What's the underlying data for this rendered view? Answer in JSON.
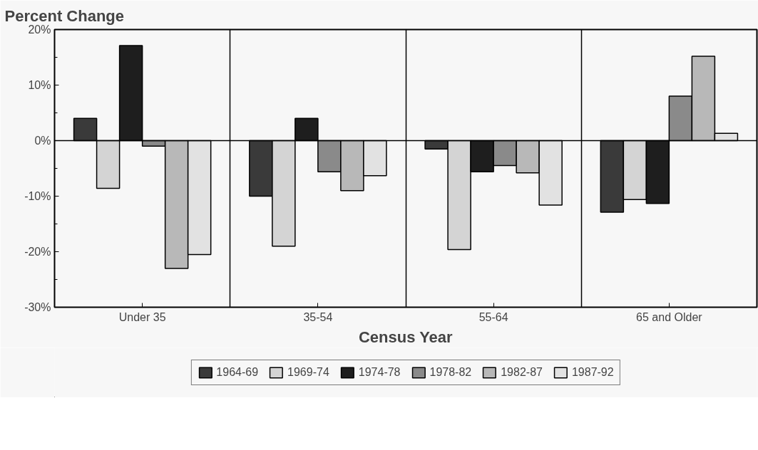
{
  "chart_data": {
    "type": "bar",
    "ylabel": "Percent Change",
    "xlabel": "Census Year",
    "categories": [
      "Under 35",
      "35-54",
      "55-64",
      "65 and Older"
    ],
    "series": [
      {
        "name": "1964-69",
        "color": "#3a3a3a",
        "values": [
          4.0,
          -10.0,
          -1.5,
          -12.9
        ]
      },
      {
        "name": "1969-74",
        "color": "#d4d4d4",
        "values": [
          -8.6,
          -19.0,
          -19.6,
          -10.6
        ]
      },
      {
        "name": "1974-78",
        "color": "#1e1e1e",
        "values": [
          17.1,
          4.0,
          -5.6,
          -11.3
        ]
      },
      {
        "name": "1978-82",
        "color": "#8a8a8a",
        "values": [
          -1.0,
          -5.6,
          -4.5,
          8.0
        ]
      },
      {
        "name": "1982-87",
        "color": "#b8b8b8",
        "values": [
          -23.0,
          -9.0,
          -5.8,
          15.2
        ]
      },
      {
        "name": "1987-92",
        "color": "#e2e2e2",
        "values": [
          -20.5,
          -6.3,
          -11.6,
          1.3
        ]
      }
    ],
    "ylim": [
      -30,
      20
    ],
    "yticks": [
      {
        "value": -30,
        "label": "-30%"
      },
      {
        "value": -20,
        "label": "-20%"
      },
      {
        "value": -10,
        "label": "-10%"
      },
      {
        "value": 0,
        "label": "0%"
      },
      {
        "value": 10,
        "label": "10%"
      },
      {
        "value": 20,
        "label": "20%"
      }
    ],
    "ref_lines": [
      {
        "axis": "y",
        "value": 0,
        "color": "#000000"
      }
    ],
    "grid": "x",
    "legend": "bottom"
  }
}
